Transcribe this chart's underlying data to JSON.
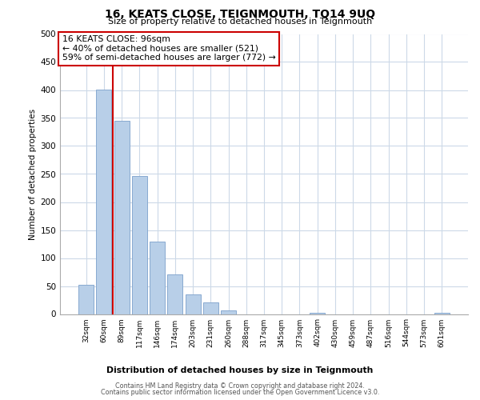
{
  "title": "16, KEATS CLOSE, TEIGNMOUTH, TQ14 9UQ",
  "subtitle": "Size of property relative to detached houses in Teignmouth",
  "xlabel": "Distribution of detached houses by size in Teignmouth",
  "ylabel": "Number of detached properties",
  "bar_labels": [
    "32sqm",
    "60sqm",
    "89sqm",
    "117sqm",
    "146sqm",
    "174sqm",
    "203sqm",
    "231sqm",
    "260sqm",
    "288sqm",
    "317sqm",
    "345sqm",
    "373sqm",
    "402sqm",
    "430sqm",
    "459sqm",
    "487sqm",
    "516sqm",
    "544sqm",
    "573sqm",
    "601sqm"
  ],
  "bar_values": [
    52,
    401,
    345,
    246,
    130,
    71,
    35,
    21,
    6,
    0,
    0,
    0,
    0,
    2,
    0,
    0,
    0,
    0,
    0,
    0,
    2
  ],
  "bar_color": "#b8cfe8",
  "bar_edge_color": "#88aad0",
  "vline_color": "#cc0000",
  "vline_x_index": 2,
  "annotation_title": "16 KEATS CLOSE: 96sqm",
  "annotation_line1": "← 40% of detached houses are smaller (521)",
  "annotation_line2": "59% of semi-detached houses are larger (772) →",
  "annotation_box_color": "#ffffff",
  "annotation_box_edge": "#cc0000",
  "ylim": [
    0,
    500
  ],
  "yticks": [
    0,
    50,
    100,
    150,
    200,
    250,
    300,
    350,
    400,
    450,
    500
  ],
  "footer1": "Contains HM Land Registry data © Crown copyright and database right 2024.",
  "footer2": "Contains public sector information licensed under the Open Government Licence v3.0.",
  "background_color": "#ffffff",
  "grid_color": "#ccd9e8"
}
